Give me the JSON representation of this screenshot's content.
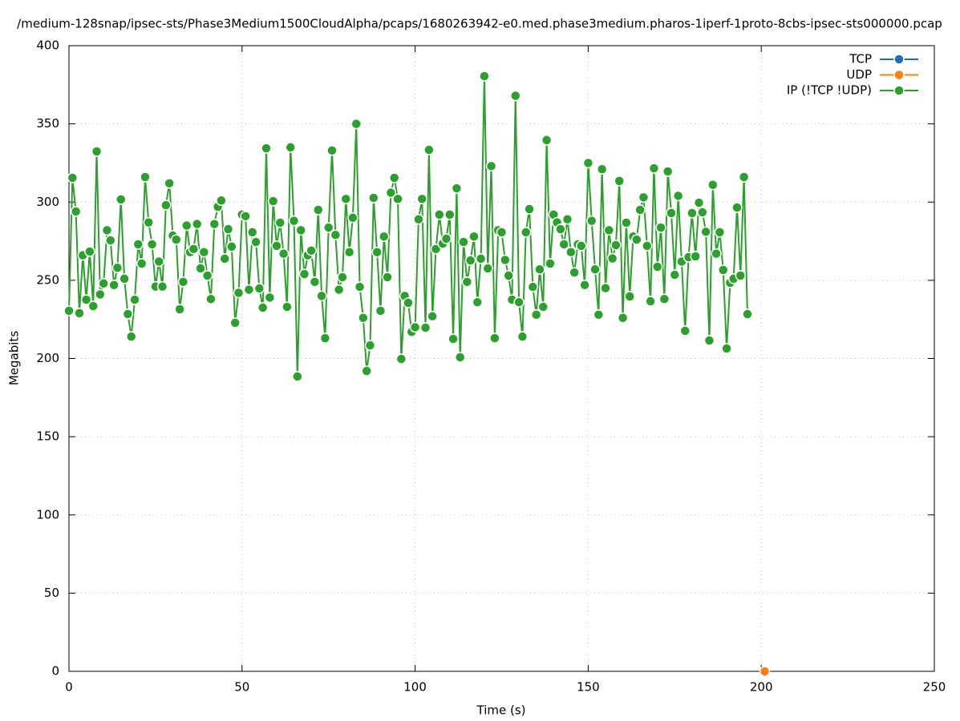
{
  "chart_data": {
    "type": "line",
    "title": "/medium-128snap/ipsec-sts/Phase3Medium1500CloudAlpha/pcaps/1680263942-e0.med.phase3medium.pharos-1iperf-1proto-8cbs-ipsec-sts000000.pcap",
    "x_label": "Time (s)",
    "y_label": "Megabits",
    "xlim": [
      0,
      250
    ],
    "xticks": [
      0,
      50,
      100,
      150,
      200,
      250
    ],
    "ylim": [
      0,
      400
    ],
    "yticks": [
      0,
      50,
      100,
      150,
      200,
      250,
      300,
      350,
      400
    ],
    "grid": true,
    "legend": "top-right",
    "series": [
      {
        "name": "TCP",
        "color": "#1f6fb5",
        "x": [],
        "values": []
      },
      {
        "name": "UDP",
        "color": "#ff7f0e",
        "x": [
          201
        ],
        "values": [
          0
        ]
      },
      {
        "name": "IP (!TCP  !UDP)",
        "color": "#2ca02c",
        "x": [
          0,
          1,
          2,
          3,
          4,
          5,
          6,
          7,
          8,
          9,
          10,
          11,
          12,
          13,
          14,
          15,
          16,
          17,
          18,
          19,
          20,
          21,
          22,
          23,
          24,
          25,
          26,
          27,
          28,
          29,
          30,
          31,
          32,
          33,
          34,
          35,
          36,
          37,
          38,
          39,
          40,
          41,
          42,
          43,
          44,
          45,
          46,
          47,
          48,
          49,
          50,
          51,
          52,
          53,
          54,
          55,
          56,
          57,
          58,
          59,
          60,
          61,
          62,
          63,
          64,
          65,
          66,
          67,
          68,
          69,
          70,
          71,
          72,
          73,
          74,
          75,
          76,
          77,
          78,
          79,
          80,
          81,
          82,
          83,
          84,
          85,
          86,
          87,
          88,
          89,
          90,
          91,
          92,
          93,
          94,
          95,
          96,
          97,
          98,
          99,
          100,
          101,
          102,
          103,
          104,
          105,
          106,
          107,
          108,
          109,
          110,
          111,
          112,
          113,
          114,
          115,
          116,
          117,
          118,
          119,
          120,
          121,
          122,
          123,
          124,
          125,
          126,
          127,
          128,
          129,
          130,
          131,
          132,
          133,
          134,
          135,
          136,
          137,
          138,
          139,
          140,
          141,
          142,
          143,
          144,
          145,
          146,
          147,
          148,
          149,
          150,
          151,
          152,
          153,
          154,
          155,
          156,
          157,
          158,
          159,
          160,
          161,
          162,
          163,
          164,
          165,
          166,
          167,
          168,
          169,
          170,
          171,
          172,
          173,
          174,
          175,
          176,
          177,
          178,
          179,
          180,
          181,
          182,
          183,
          184,
          185,
          186,
          187,
          188,
          189,
          190,
          191,
          192,
          193,
          194,
          195,
          196
        ],
        "values": [
          230.5,
          315.5,
          294,
          229,
          266,
          237.6,
          268.4,
          233.5,
          332.4,
          241,
          248,
          282,
          275.5,
          247,
          258,
          301.7,
          251,
          228.4,
          214,
          237.6,
          273,
          260.7,
          316,
          287,
          273,
          246,
          262,
          246,
          298,
          312,
          278.6,
          276,
          231.5,
          249,
          285,
          268,
          270,
          286,
          257.6,
          268,
          253,
          238,
          286,
          297,
          301,
          263.8,
          282.7,
          271.5,
          222.8,
          242,
          292,
          291,
          244,
          280.7,
          274.5,
          244.8,
          232.5,
          334.4,
          239,
          300.6,
          272,
          286.8,
          267,
          233,
          335,
          288,
          188.5,
          282,
          254,
          266,
          269,
          249,
          295,
          240,
          213,
          283.7,
          333,
          279,
          244,
          252,
          302,
          268,
          290,
          350,
          245.8,
          226,
          192,
          208.4,
          302.7,
          268,
          230.5,
          278,
          252,
          306,
          315.5,
          302,
          199.7,
          240,
          235.6,
          217,
          220,
          289,
          302,
          219.7,
          333.4,
          227,
          270,
          292,
          273.5,
          276.6,
          292,
          212.5,
          308.8,
          200.8,
          274.5,
          249,
          262.7,
          278,
          236,
          263.8,
          380.5,
          257.6,
          323,
          213,
          282,
          280.7,
          263,
          253,
          237.6,
          368,
          236,
          214,
          280.7,
          295.5,
          245.8,
          228,
          257,
          233,
          339.6,
          260.7,
          292,
          287,
          282.7,
          273,
          289,
          268,
          255,
          273,
          272,
          247,
          325,
          288,
          257,
          228,
          321,
          245,
          282,
          264,
          272.5,
          313.5,
          226,
          286.8,
          239.7,
          278,
          276,
          295,
          303,
          272,
          236.6,
          321.6,
          258.6,
          283.7,
          238,
          319.6,
          293,
          253.5,
          304,
          262,
          217.7,
          264.8,
          293,
          265.3,
          299.6,
          293.5,
          281,
          211.5,
          311,
          267,
          280.7,
          256.6,
          206.4,
          248.4,
          251,
          296.5,
          253,
          316,
          228.4
        ]
      }
    ]
  }
}
